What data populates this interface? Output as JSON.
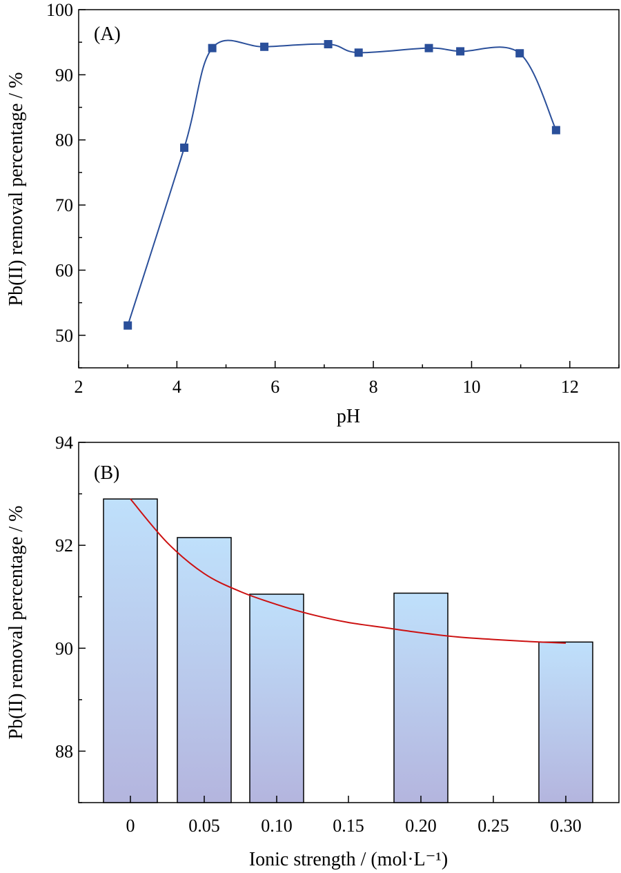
{
  "chart_data": [
    {
      "type": "line",
      "panel_label": "(A)",
      "xlabel": "pH",
      "ylabel": "Pb(II) removal percentage / %",
      "xlim": [
        2,
        13
      ],
      "ylim": [
        45,
        100
      ],
      "x_ticks": [
        2,
        4,
        6,
        8,
        10,
        12
      ],
      "y_ticks": [
        50,
        60,
        70,
        80,
        90,
        100
      ],
      "grid": false,
      "series": [
        {
          "x": [
            3.0,
            4.15,
            4.72,
            5.78,
            7.08,
            7.7,
            9.13,
            9.77,
            10.98,
            11.72
          ],
          "y": [
            51.5,
            78.8,
            94.1,
            94.3,
            94.7,
            93.4,
            94.1,
            93.6,
            93.3,
            81.5
          ],
          "color": "#2a4f9a"
        }
      ]
    },
    {
      "type": "bar",
      "panel_label": "(B)",
      "xlabel": "Ionic strength / (mol·L⁻¹)",
      "ylabel": "Pb(II) removal percentage / %",
      "ylim": [
        87,
        94
      ],
      "y_ticks": [
        88,
        90,
        92,
        94
      ],
      "categories": [
        "0",
        "0.05",
        "0.10",
        "0.15",
        "0.20",
        "0.25",
        "0.30"
      ],
      "grid": false,
      "bars": [
        {
          "x": 0.0,
          "value": 92.9
        },
        {
          "x": 0.05,
          "value": 92.15
        },
        {
          "x": 0.1,
          "value": 91.05
        },
        {
          "x": 0.2,
          "value": 91.07
        },
        {
          "x": 0.3,
          "value": 90.12
        }
      ],
      "fit_curve": {
        "color": "#cc1111",
        "x": [
          0.0,
          0.025,
          0.05,
          0.075,
          0.1,
          0.125,
          0.15,
          0.175,
          0.2,
          0.225,
          0.25,
          0.275,
          0.3
        ],
        "y": [
          92.9,
          92.05,
          91.45,
          91.1,
          90.85,
          90.65,
          90.5,
          90.4,
          90.3,
          90.22,
          90.17,
          90.13,
          90.1
        ]
      }
    }
  ]
}
